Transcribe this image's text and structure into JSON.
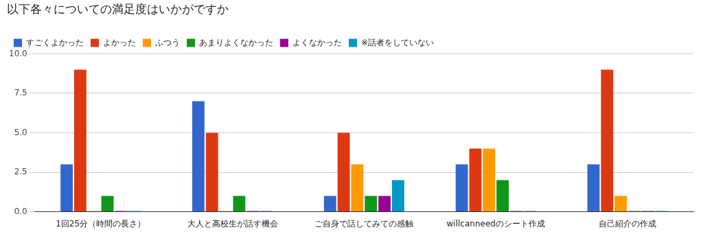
{
  "chart_data": {
    "type": "bar",
    "title": "以下各々についての満足度はいかがですか",
    "categories": [
      "1回25分（時間の長さ）",
      "大人と高校生が話す機会",
      "ご自身で話してみての感触",
      "willcanneedのシート作成",
      "自己紹介の作成"
    ],
    "series": [
      {
        "name": "すごくよかった",
        "color": "#3366cc",
        "values": [
          3,
          7,
          1,
          3,
          3
        ]
      },
      {
        "name": "よかった",
        "color": "#dc3912",
        "values": [
          9,
          5,
          5,
          4,
          9
        ]
      },
      {
        "name": "ふつう",
        "color": "#ff9900",
        "values": [
          0,
          0,
          3,
          4,
          1
        ]
      },
      {
        "name": "あまりよくなかった",
        "color": "#109618",
        "values": [
          1,
          1,
          1,
          2,
          0
        ]
      },
      {
        "name": "よくなかった",
        "color": "#990099",
        "values": [
          0,
          0,
          1,
          0,
          0
        ]
      },
      {
        "name": "※話者をしていない",
        "color": "#0099c6",
        "values": [
          0,
          0,
          2,
          0,
          0
        ]
      }
    ],
    "ylim": [
      0,
      10
    ],
    "yticks": [
      {
        "value": 0,
        "label": "0.0"
      },
      {
        "value": 2.5,
        "label": "2.5"
      },
      {
        "value": 5,
        "label": "5.0"
      },
      {
        "value": 7.5,
        "label": "7.5"
      },
      {
        "value": 10,
        "label": "10.0"
      }
    ],
    "grid": "y",
    "legend": "top left"
  }
}
